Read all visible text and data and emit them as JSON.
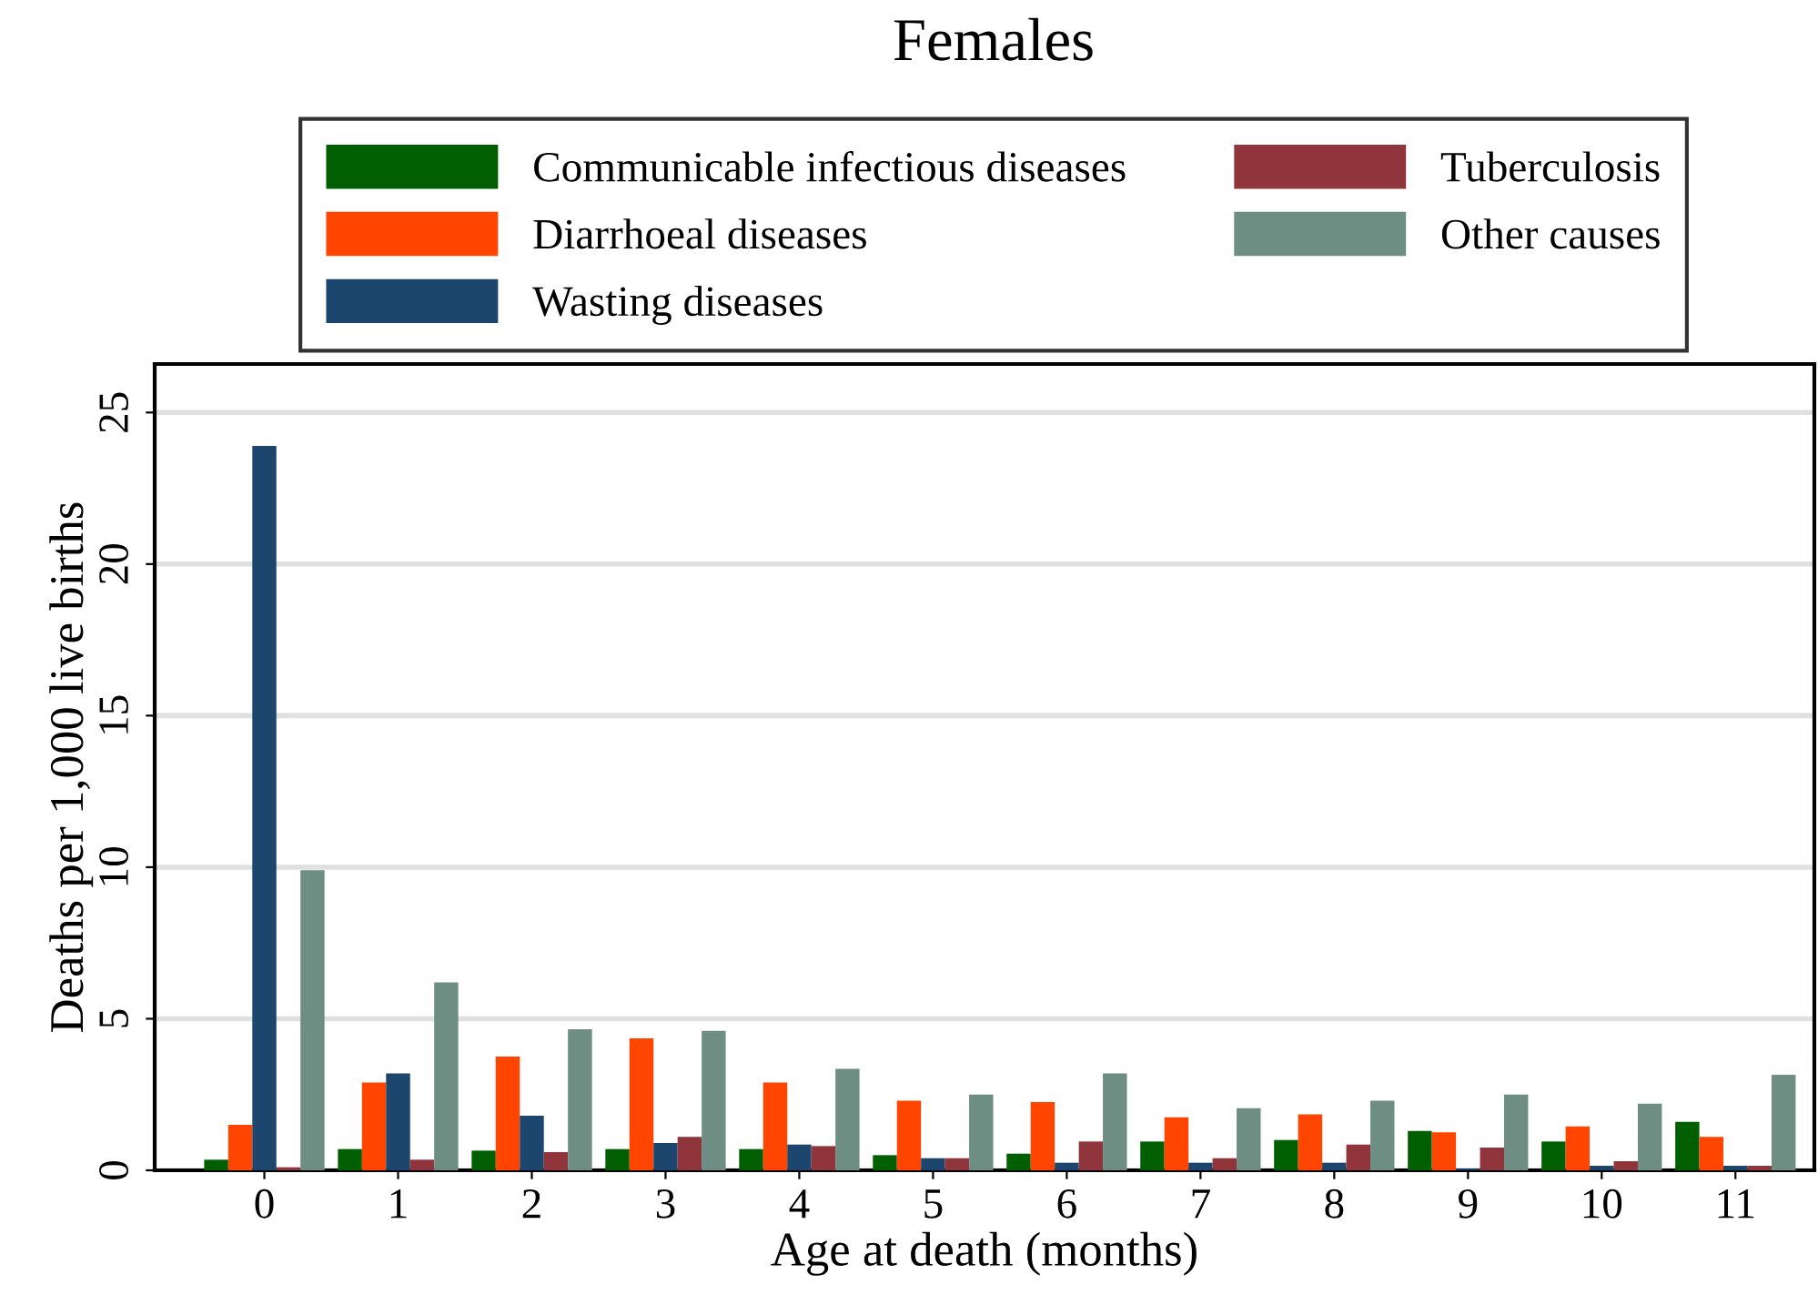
{
  "chart_data": {
    "type": "bar",
    "title": "Females",
    "xlabel": "Age at death (months)",
    "ylabel": "Deaths per 1,000 live births",
    "categories": [
      "0",
      "1",
      "2",
      "3",
      "4",
      "5",
      "6",
      "7",
      "8",
      "9",
      "10",
      "11"
    ],
    "series": [
      {
        "name": "Communicable infectious diseases",
        "color": "#005f00",
        "values": [
          0.35,
          0.7,
          0.65,
          0.7,
          0.7,
          0.5,
          0.55,
          0.95,
          1.0,
          1.3,
          0.95,
          1.6
        ]
      },
      {
        "name": "Diarrhoeal diseases",
        "color": "#ff4500",
        "values": [
          1.5,
          2.9,
          3.75,
          4.35,
          2.9,
          2.3,
          2.25,
          1.75,
          1.85,
          1.25,
          1.45,
          1.1
        ]
      },
      {
        "name": "Wasting diseases",
        "color": "#1c466e",
        "values": [
          23.9,
          3.2,
          1.8,
          0.9,
          0.85,
          0.4,
          0.25,
          0.25,
          0.25,
          0.05,
          0.15,
          0.15
        ]
      },
      {
        "name": "Tuberculosis",
        "color": "#90353b",
        "values": [
          0.1,
          0.35,
          0.6,
          1.1,
          0.8,
          0.4,
          0.95,
          0.4,
          0.85,
          0.75,
          0.3,
          0.15
        ]
      },
      {
        "name": "Other causes",
        "color": "#6e8e84",
        "values": [
          9.9,
          6.2,
          4.65,
          4.6,
          3.35,
          2.5,
          3.2,
          2.05,
          2.3,
          2.5,
          2.2,
          3.15
        ]
      }
    ],
    "ylim": [
      0,
      26.6
    ],
    "yticks": [
      0,
      5,
      10,
      15,
      20,
      25
    ],
    "grid": "y",
    "legend": "top"
  }
}
